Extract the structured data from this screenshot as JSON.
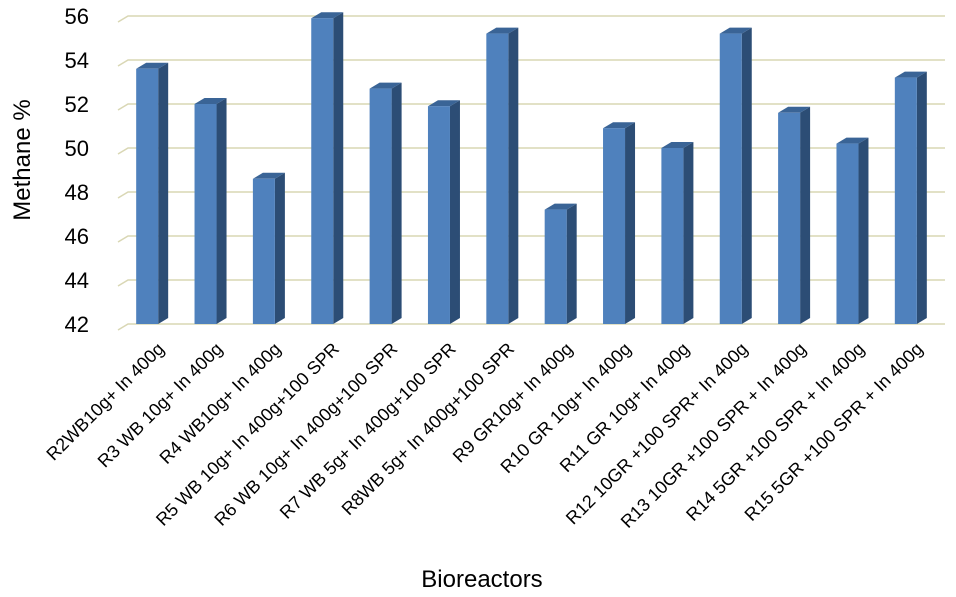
{
  "chart_data": {
    "type": "bar",
    "title": "",
    "xlabel": "Bioreactors",
    "ylabel": "Methane %",
    "ylim": [
      42,
      56
    ],
    "yticks": [
      42,
      44,
      46,
      48,
      50,
      52,
      54,
      56
    ],
    "grid": true,
    "legend": "none",
    "categories": [
      "R2WB10g+ In 400g",
      "R3 WB 10g+ In 400g",
      "R4 WB10g+ In 400g",
      "R5 WB 10g+ In 400g+100 SPR",
      "R6 WB 10g+ In 400g+100 SPR",
      "R7 WB 5g+ In 400g+100 SPR",
      "R8WB 5g+ In 400g+100 SPR",
      "R9 GR10g+ In 400g",
      "R10 GR 10g+ In 400g",
      "R11 GR 10g+ In 400g",
      "R12 10GR +100 SPR+ In 400g",
      "R13 10GR +100 SPR + In 400g",
      "R14 5GR +100 SPR + In 400g",
      "R15 5GR +100 SPR + In 400g"
    ],
    "values": [
      53.6,
      52.0,
      48.6,
      55.9,
      52.7,
      51.9,
      55.2,
      47.2,
      50.9,
      50.0,
      55.2,
      51.6,
      50.2,
      53.2
    ],
    "colors": {
      "bar_front": "#4f81bd",
      "bar_side": "#2c4d75",
      "bar_top": "#3a6496",
      "grid": "#d9d7b4"
    }
  }
}
